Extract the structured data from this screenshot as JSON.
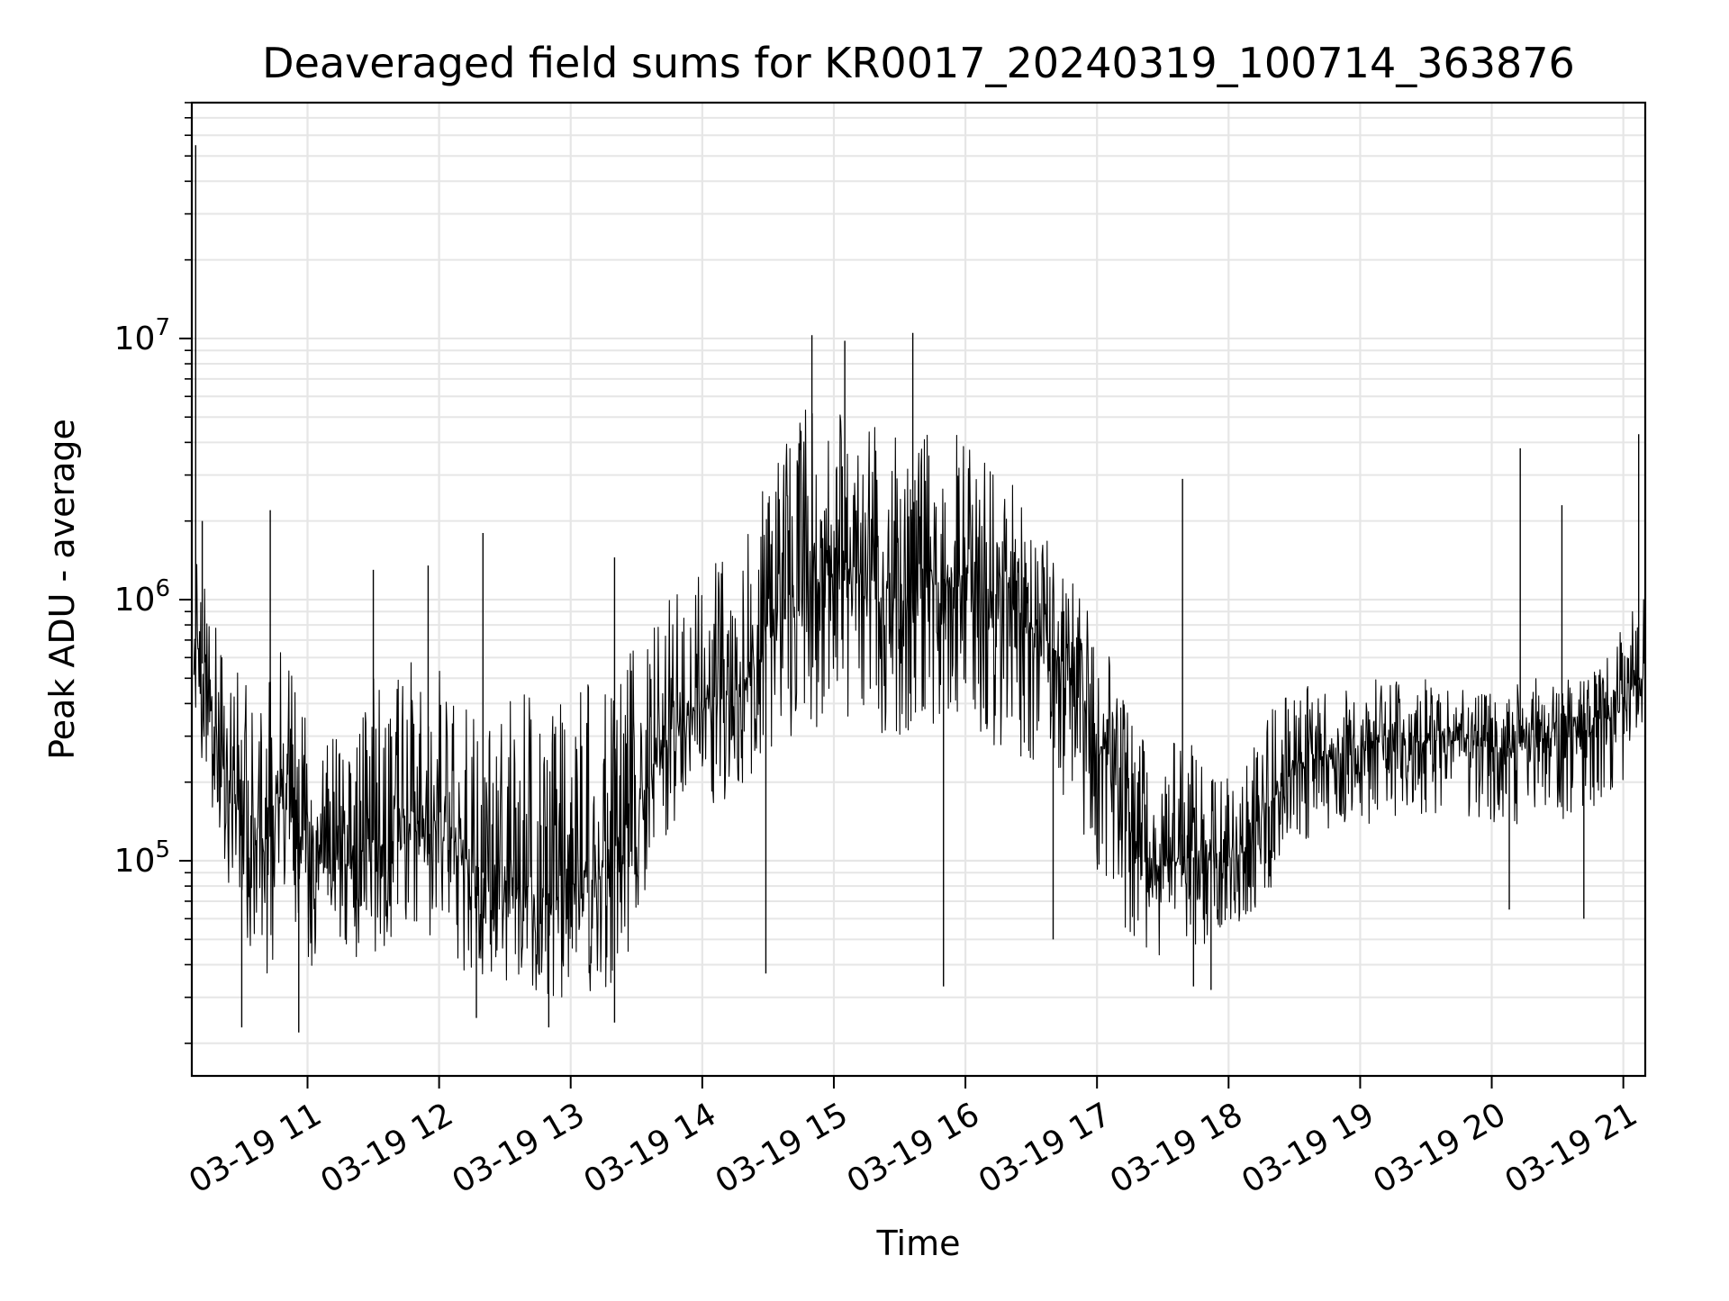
{
  "chart_data": {
    "type": "line",
    "title": "Deaveraged field sums for KR0017_20240319_100714_363876",
    "xlabel": "Time",
    "ylabel": "Peak ADU - average",
    "y_scale": "log",
    "x_scale": "time",
    "xlim": [
      "2024-03-19 10:07:14",
      "2024-03-19 21:10:00"
    ],
    "ylim": [
      15000,
      80000000
    ],
    "grid": true,
    "grid_minor": true,
    "line_color": "#000000",
    "x_tick_labels": [
      "03-19 11",
      "03-19 12",
      "03-19 13",
      "03-19 14",
      "03-19 15",
      "03-19 16",
      "03-19 17",
      "03-19 18",
      "03-19 19",
      "03-19 20",
      "03-19 21"
    ],
    "x_tick_values": [
      "2024-03-19 11:00",
      "2024-03-19 12:00",
      "2024-03-19 13:00",
      "2024-03-19 14:00",
      "2024-03-19 15:00",
      "2024-03-19 16:00",
      "2024-03-19 17:00",
      "2024-03-19 18:00",
      "2024-03-19 19:00",
      "2024-03-19 20:00",
      "2024-03-19 21:00"
    ],
    "y_tick_values": [
      100000,
      1000000,
      10000000
    ],
    "y_tick_labels": [
      {
        "base": "10",
        "exp": "5"
      },
      {
        "base": "10",
        "exp": "6"
      },
      {
        "base": "10",
        "exp": "7"
      }
    ],
    "series": [
      {
        "x": [
          "2024-03-19 10:10",
          "2024-03-19 10:20",
          "2024-03-19 10:30",
          "2024-03-19 10:40",
          "2024-03-19 10:50",
          "2024-03-19 11:00",
          "2024-03-19 11:10",
          "2024-03-19 11:20",
          "2024-03-19 11:30",
          "2024-03-19 11:40",
          "2024-03-19 11:50",
          "2024-03-19 12:00",
          "2024-03-19 12:10",
          "2024-03-19 12:20",
          "2024-03-19 12:30",
          "2024-03-19 12:40",
          "2024-03-19 12:50",
          "2024-03-19 13:00",
          "2024-03-19 13:10",
          "2024-03-19 13:20",
          "2024-03-19 13:30",
          "2024-03-19 13:40",
          "2024-03-19 13:50",
          "2024-03-19 14:00",
          "2024-03-19 14:10",
          "2024-03-19 14:20",
          "2024-03-19 14:30",
          "2024-03-19 14:40",
          "2024-03-19 14:50",
          "2024-03-19 15:00",
          "2024-03-19 15:10",
          "2024-03-19 15:20",
          "2024-03-19 15:30",
          "2024-03-19 15:40",
          "2024-03-19 15:50",
          "2024-03-19 16:00",
          "2024-03-19 16:10",
          "2024-03-19 16:20",
          "2024-03-19 16:30",
          "2024-03-19 16:40",
          "2024-03-19 16:50",
          "2024-03-19 17:00",
          "2024-03-19 17:10",
          "2024-03-19 17:20",
          "2024-03-19 17:30",
          "2024-03-19 17:40",
          "2024-03-19 17:50",
          "2024-03-19 18:00",
          "2024-03-19 18:10",
          "2024-03-19 18:20",
          "2024-03-19 18:30",
          "2024-03-19 18:40",
          "2024-03-19 18:50",
          "2024-03-19 19:00",
          "2024-03-19 19:10",
          "2024-03-19 19:20",
          "2024-03-19 19:30",
          "2024-03-19 19:40",
          "2024-03-19 19:50",
          "2024-03-19 20:00",
          "2024-03-19 20:10",
          "2024-03-19 20:20",
          "2024-03-19 20:30",
          "2024-03-19 20:40",
          "2024-03-19 20:50",
          "2024-03-19 21:00",
          "2024-03-19 21:10"
        ],
        "y": [
          700000,
          250000,
          150000,
          110000,
          200000,
          110000,
          90000,
          100000,
          120000,
          110000,
          140000,
          130000,
          110000,
          90000,
          75000,
          80000,
          75000,
          80000,
          90000,
          110000,
          160000,
          250000,
          350000,
          380000,
          420000,
          500000,
          700000,
          900000,
          1100000,
          1300000,
          1300000,
          1200000,
          1000000,
          1100000,
          1200000,
          1100000,
          1100000,
          1000000,
          800000,
          650000,
          500000,
          300000,
          180000,
          100000,
          95000,
          105000,
          100000,
          105000,
          120000,
          170000,
          230000,
          250000,
          250000,
          270000,
          280000,
          290000,
          290000,
          290000,
          280000,
          270000,
          270000,
          280000,
          300000,
          310000,
          330000,
          380000,
          550000
        ],
        "y_low": [
          280000,
          100000,
          55000,
          35000,
          50000,
          40000,
          38000,
          40000,
          45000,
          45000,
          50000,
          50000,
          35000,
          35000,
          30000,
          30000,
          30000,
          30000,
          30000,
          32000,
          55000,
          100000,
          140000,
          160000,
          170000,
          190000,
          250000,
          300000,
          320000,
          340000,
          330000,
          300000,
          280000,
          280000,
          300000,
          280000,
          260000,
          250000,
          200000,
          170000,
          140000,
          90000,
          60000,
          45000,
          42000,
          45000,
          45000,
          55000,
          60000,
          80000,
          110000,
          120000,
          130000,
          135000,
          140000,
          150000,
          150000,
          150000,
          140000,
          135000,
          130000,
          135000,
          140000,
          150000,
          160000,
          200000,
          350000
        ],
        "y_high": [
          1400000,
          700000,
          550000,
          550000,
          700000,
          350000,
          300000,
          300000,
          500000,
          500000,
          700000,
          550000,
          600000,
          400000,
          400000,
          500000,
          400000,
          400000,
          500000,
          550000,
          700000,
          900000,
          1200000,
          1300000,
          1500000,
          1800000,
          3000000,
          5000000,
          6000000,
          6000000,
          5000000,
          5000000,
          4000000,
          4500000,
          5000000,
          4000000,
          3500000,
          3000000,
          2000000,
          1600000,
          1300000,
          800000,
          500000,
          300000,
          300000,
          280000,
          280000,
          220000,
          260000,
          400000,
          500000,
          450000,
          480000,
          500000,
          520000,
          520000,
          500000,
          480000,
          480000,
          460000,
          480000,
          500000,
          500000,
          520000,
          550000,
          800000,
          1400000
        ],
        "spikes": [
          {
            "x": "2024-03-19 10:09",
            "y": 55000000
          },
          {
            "x": "2024-03-19 10:12",
            "y": 2000000
          },
          {
            "x": "2024-03-19 10:43",
            "y": 2200000
          },
          {
            "x": "2024-03-19 10:30",
            "y": 23000
          },
          {
            "x": "2024-03-19 10:56",
            "y": 22000
          },
          {
            "x": "2024-03-19 11:30",
            "y": 1300000
          },
          {
            "x": "2024-03-19 11:55",
            "y": 1350000
          },
          {
            "x": "2024-03-19 12:17",
            "y": 25000
          },
          {
            "x": "2024-03-19 12:20",
            "y": 1800000
          },
          {
            "x": "2024-03-19 12:50",
            "y": 23000
          },
          {
            "x": "2024-03-19 13:20",
            "y": 24000
          },
          {
            "x": "2024-03-19 13:20",
            "y": 1450000
          },
          {
            "x": "2024-03-19 14:29",
            "y": 37000
          },
          {
            "x": "2024-03-19 14:50",
            "y": 10300000
          },
          {
            "x": "2024-03-19 15:05",
            "y": 9800000
          },
          {
            "x": "2024-03-19 15:36",
            "y": 10500000
          },
          {
            "x": "2024-03-19 15:50",
            "y": 33000
          },
          {
            "x": "2024-03-19 16:40",
            "y": 50000
          },
          {
            "x": "2024-03-19 17:39",
            "y": 2900000
          },
          {
            "x": "2024-03-19 17:44",
            "y": 33000
          },
          {
            "x": "2024-03-19 17:52",
            "y": 32000
          },
          {
            "x": "2024-03-19 20:13",
            "y": 3800000
          },
          {
            "x": "2024-03-19 20:08",
            "y": 65000
          },
          {
            "x": "2024-03-19 20:32",
            "y": 2300000
          },
          {
            "x": "2024-03-19 20:42",
            "y": 60000
          },
          {
            "x": "2024-03-19 21:07",
            "y": 4300000
          }
        ]
      }
    ]
  }
}
